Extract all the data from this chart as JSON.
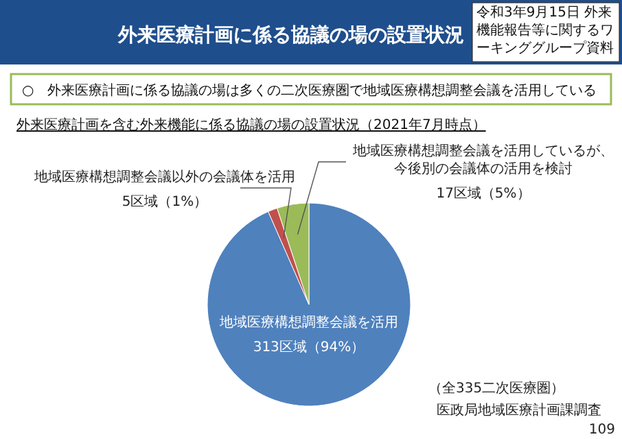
{
  "chart_data": {
    "type": "pie",
    "title": "外来医療計画に係る協議の場の設置状況",
    "subtitle": "外来医療計画を含む外来機能に係る協議の場の設置状況（2021年7月時点）",
    "categories": [
      "地域医療構想調整会議を活用",
      "地域医療構想調整会議以外の会議体を活用",
      "地域医療構想調整会議を活用しているが、今後別の会議体の活用を検討"
    ],
    "values": [
      313,
      5,
      17
    ],
    "colors": [
      "#4f81bd",
      "#c0504d",
      "#9bbb59"
    ],
    "value_labels": [
      "313区域（94%）",
      "5区域（1%）",
      "17区域（5%）"
    ],
    "annotations": [
      "令和3年9月15日 外来機能報告等に関するワーキンググループ資料",
      "○　外来医療計画に係る協議の場は多くの二次医療圏で地域医療構想調整会議を活用している",
      "（全335二次医療圏）",
      "医政局地域医療計画課調査",
      "109"
    ]
  }
}
